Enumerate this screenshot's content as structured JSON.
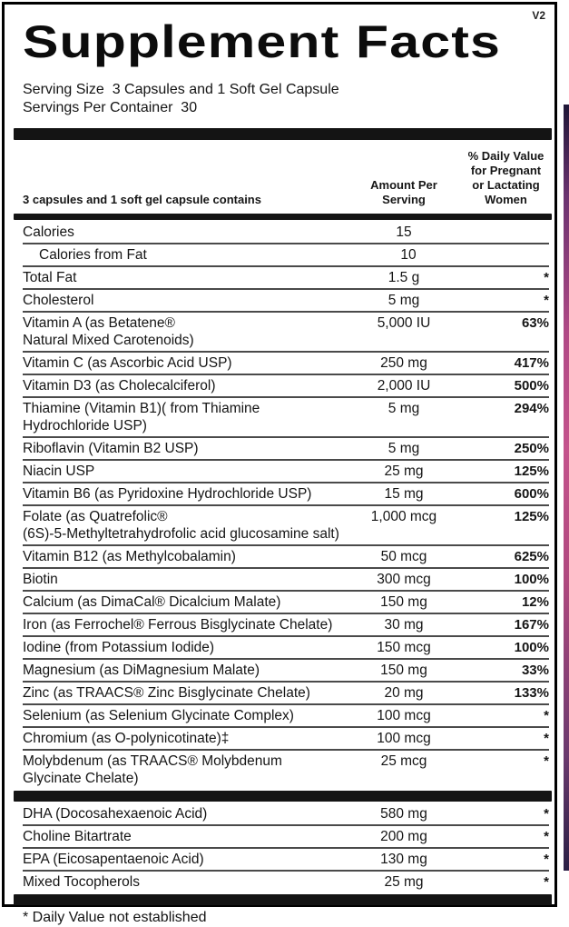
{
  "version_tag": "V2",
  "title": "Supplement Facts",
  "serving": {
    "serving_size": "Serving Size  3 Capsules and 1 Soft Gel Capsule",
    "servings_per_container": "Servings Per Container  30"
  },
  "table": {
    "col_item": "3 capsules and 1 soft gel capsule contains",
    "col_amount_lines": [
      "Amount Per",
      "Serving"
    ],
    "col_dv_lines": [
      "% Daily Value",
      "for Pregnant",
      "or Lactating",
      "Women"
    ],
    "rows": [
      {
        "type": "row",
        "name": "Calories",
        "amount": "15",
        "dv": ""
      },
      {
        "type": "row",
        "name": "Calories from Fat",
        "amount": "10",
        "dv": "",
        "indent": true
      },
      {
        "type": "row",
        "name": "Total Fat",
        "amount": "1.5 g",
        "dv": "*"
      },
      {
        "type": "row",
        "name": "Cholesterol",
        "amount": "5 mg",
        "dv": "*"
      },
      {
        "type": "row",
        "name": "Vitamin A (as Betatene®",
        "name2": "Natural Mixed Carotenoids)",
        "amount": "5,000 IU",
        "dv": "63%"
      },
      {
        "type": "row",
        "name": "Vitamin C (as Ascorbic Acid USP)",
        "amount": "250 mg",
        "dv": "417%"
      },
      {
        "type": "row",
        "name": "Vitamin D3 (as Cholecalciferol)",
        "amount": "2,000 IU",
        "dv": "500%"
      },
      {
        "type": "row",
        "name": "Thiamine (Vitamin B1)( from Thiamine",
        "name2": "Hydrochloride USP)",
        "amount": "5 mg",
        "dv": "294%"
      },
      {
        "type": "row",
        "name": "Riboflavin (Vitamin B2 USP)",
        "amount": "5 mg",
        "dv": "250%"
      },
      {
        "type": "row",
        "name": "Niacin USP",
        "amount": "25 mg",
        "dv": "125%"
      },
      {
        "type": "row",
        "name": "Vitamin B6 (as Pyridoxine Hydrochloride USP)",
        "amount": "15 mg",
        "dv": "600%"
      },
      {
        "type": "row",
        "name": "Folate (as Quatrefolic®",
        "name2": "(6S)-5-Methyltetrahydrofolic acid glucosamine salt)",
        "amount": "1,000 mcg",
        "dv": "125%"
      },
      {
        "type": "row",
        "name": "Vitamin B12 (as Methylcobalamin)",
        "amount": "50 mcg",
        "dv": "625%"
      },
      {
        "type": "row",
        "name": "Biotin",
        "amount": "300 mcg",
        "dv": "100%"
      },
      {
        "type": "row",
        "name": "Calcium (as DimaCal® Dicalcium Malate)",
        "amount": "150 mg",
        "dv": "12%"
      },
      {
        "type": "row",
        "name": "Iron (as Ferrochel® Ferrous Bisglycinate Chelate)",
        "amount": "30 mg",
        "dv": "167%"
      },
      {
        "type": "row",
        "name": "Iodine (from Potassium Iodide)",
        "amount": "150 mcg",
        "dv": "100%"
      },
      {
        "type": "row",
        "name": "Magnesium (as DiMagnesium Malate)",
        "amount": "150 mg",
        "dv": "33%"
      },
      {
        "type": "row",
        "name": "Zinc (as TRAACS® Zinc Bisglycinate Chelate)",
        "amount": "20 mg",
        "dv": "133%"
      },
      {
        "type": "row",
        "name": "Selenium (as Selenium Glycinate Complex)",
        "amount": "100 mcg",
        "dv": "*"
      },
      {
        "type": "row",
        "name": "Chromium (as O-polynicotinate)‡",
        "amount": "100 mcg",
        "dv": "*"
      },
      {
        "type": "row",
        "name": "Molybdenum (as TRAACS® Molybdenum",
        "name2": "Glycinate Chelate)",
        "amount": "25 mcg",
        "dv": "*"
      },
      {
        "type": "bar",
        "size": "thick"
      },
      {
        "type": "row",
        "name": "DHA (Docosahexaenoic Acid)",
        "amount": "580 mg",
        "dv": "*"
      },
      {
        "type": "row",
        "name": "Choline Bitartrate",
        "amount": "200 mg",
        "dv": "*"
      },
      {
        "type": "row",
        "name": "EPA (Eicosapentaenoic Acid)",
        "amount": "130 mg",
        "dv": "*"
      },
      {
        "type": "row",
        "name": "Mixed Tocopherols",
        "amount": "25 mg",
        "dv": "*"
      },
      {
        "type": "bar",
        "size": "thick"
      }
    ]
  },
  "footnote": "* Daily Value not established",
  "colors": {
    "border": "#000000",
    "bar": "#141414",
    "accent_strip_top": "#1e1636",
    "accent_strip_mid": "#c4538c",
    "accent_strip_bottom": "#2a1f45"
  }
}
